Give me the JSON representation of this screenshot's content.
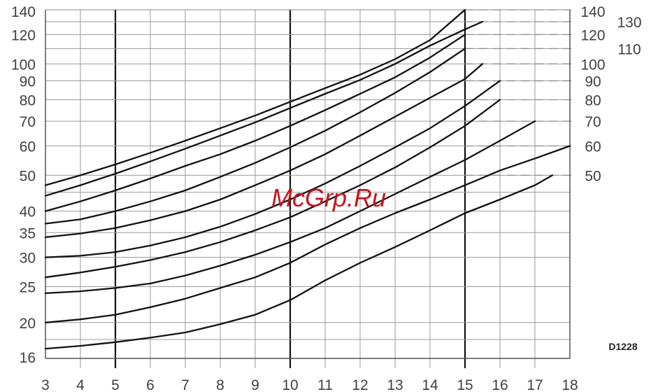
{
  "chart_data": {
    "type": "line",
    "xlim": [
      3,
      18
    ],
    "ylim": [
      16,
      140
    ],
    "y_scale": "log",
    "x_ticks": [
      "3",
      "4",
      "5",
      "6",
      "7",
      "8",
      "9",
      "10",
      "11",
      "12",
      "13",
      "14",
      "15",
      "16",
      "17",
      "18"
    ],
    "y_ticks_left": [
      "16",
      "20",
      "25",
      "30",
      "35",
      "40",
      "50",
      "60",
      "70",
      "80",
      "90",
      "100",
      "120",
      "140"
    ],
    "y_ticks_right": [
      "50",
      "60",
      "70",
      "80",
      "90",
      "100",
      "110",
      "120",
      "130",
      "140"
    ],
    "grid": true,
    "series": [
      {
        "x": [
          3,
          4,
          5,
          6,
          7,
          8,
          9,
          10,
          11,
          12,
          13,
          14,
          15
        ],
        "y": [
          47,
          50,
          53.5,
          57.5,
          62,
          67,
          72.5,
          79,
          86,
          93.5,
          103,
          116,
          140
        ]
      },
      {
        "x": [
          3,
          4,
          5,
          6,
          7,
          8,
          9,
          10,
          11,
          12,
          13,
          14,
          15,
          15.5
        ],
        "y": [
          44,
          47,
          50.5,
          54.5,
          59,
          64,
          69.5,
          76,
          83,
          90.5,
          100,
          112,
          124,
          130
        ]
      },
      {
        "x": [
          3,
          4,
          5,
          6,
          7,
          8,
          9,
          10,
          11,
          12,
          13,
          14,
          15
        ],
        "y": [
          40,
          42.5,
          45.5,
          49,
          53,
          57,
          62,
          68,
          75,
          83,
          92,
          104,
          120
        ]
      },
      {
        "x": [
          3,
          4,
          5,
          6,
          7,
          8,
          9,
          10,
          11,
          12,
          13,
          14,
          15
        ],
        "y": [
          37,
          38,
          40,
          42.5,
          45.5,
          49.5,
          54,
          59.5,
          66,
          74,
          83.5,
          95,
          110
        ]
      },
      {
        "x": [
          3,
          4,
          5,
          6,
          7,
          8,
          9,
          10,
          11,
          12,
          13,
          14,
          15,
          15.5
        ],
        "y": [
          34,
          34.8,
          36,
          37.8,
          40,
          43,
          47,
          51.5,
          57,
          64,
          72,
          81,
          91,
          100
        ]
      },
      {
        "x": [
          3,
          4,
          5,
          6,
          7,
          8,
          9,
          10,
          11,
          12,
          13,
          14,
          15,
          16
        ],
        "y": [
          30,
          30.3,
          31,
          32.3,
          34,
          36.3,
          39.3,
          43,
          47.5,
          53,
          59.5,
          67,
          77,
          90
        ]
      },
      {
        "x": [
          3,
          4,
          5,
          6,
          7,
          8,
          9,
          10,
          11,
          12,
          13,
          14,
          15,
          16
        ],
        "y": [
          26.5,
          27.3,
          28.3,
          29.5,
          31,
          33,
          35.5,
          38.5,
          42.5,
          47,
          52.5,
          59.5,
          68,
          80
        ]
      },
      {
        "x": [
          3,
          4,
          5,
          6,
          7,
          8,
          9,
          10,
          11,
          12,
          13,
          14,
          15,
          16,
          17
        ],
        "y": [
          24,
          24.3,
          24.8,
          25.5,
          26.8,
          28.5,
          30.5,
          33,
          36,
          40,
          44.5,
          49.5,
          55,
          62,
          70
        ]
      },
      {
        "x": [
          3,
          4,
          5,
          6,
          7,
          8,
          9,
          10,
          11,
          12,
          13,
          14,
          15,
          16,
          17,
          18
        ],
        "y": [
          20,
          20.4,
          21,
          22,
          23.2,
          24.8,
          26.5,
          29,
          32.5,
          36,
          39.5,
          43,
          47,
          51.5,
          55.5,
          60
        ]
      },
      {
        "x": [
          3,
          4,
          5,
          6,
          7,
          8,
          9,
          10,
          11,
          12,
          13,
          14,
          15,
          16,
          17,
          17.5
        ],
        "y": [
          17,
          17.3,
          17.7,
          18.2,
          18.8,
          19.8,
          21,
          23,
          26,
          29,
          32,
          35.5,
          39.5,
          43,
          47,
          50
        ]
      }
    ]
  },
  "ref_code": "D1228",
  "watermark": "McGrp.Ru"
}
